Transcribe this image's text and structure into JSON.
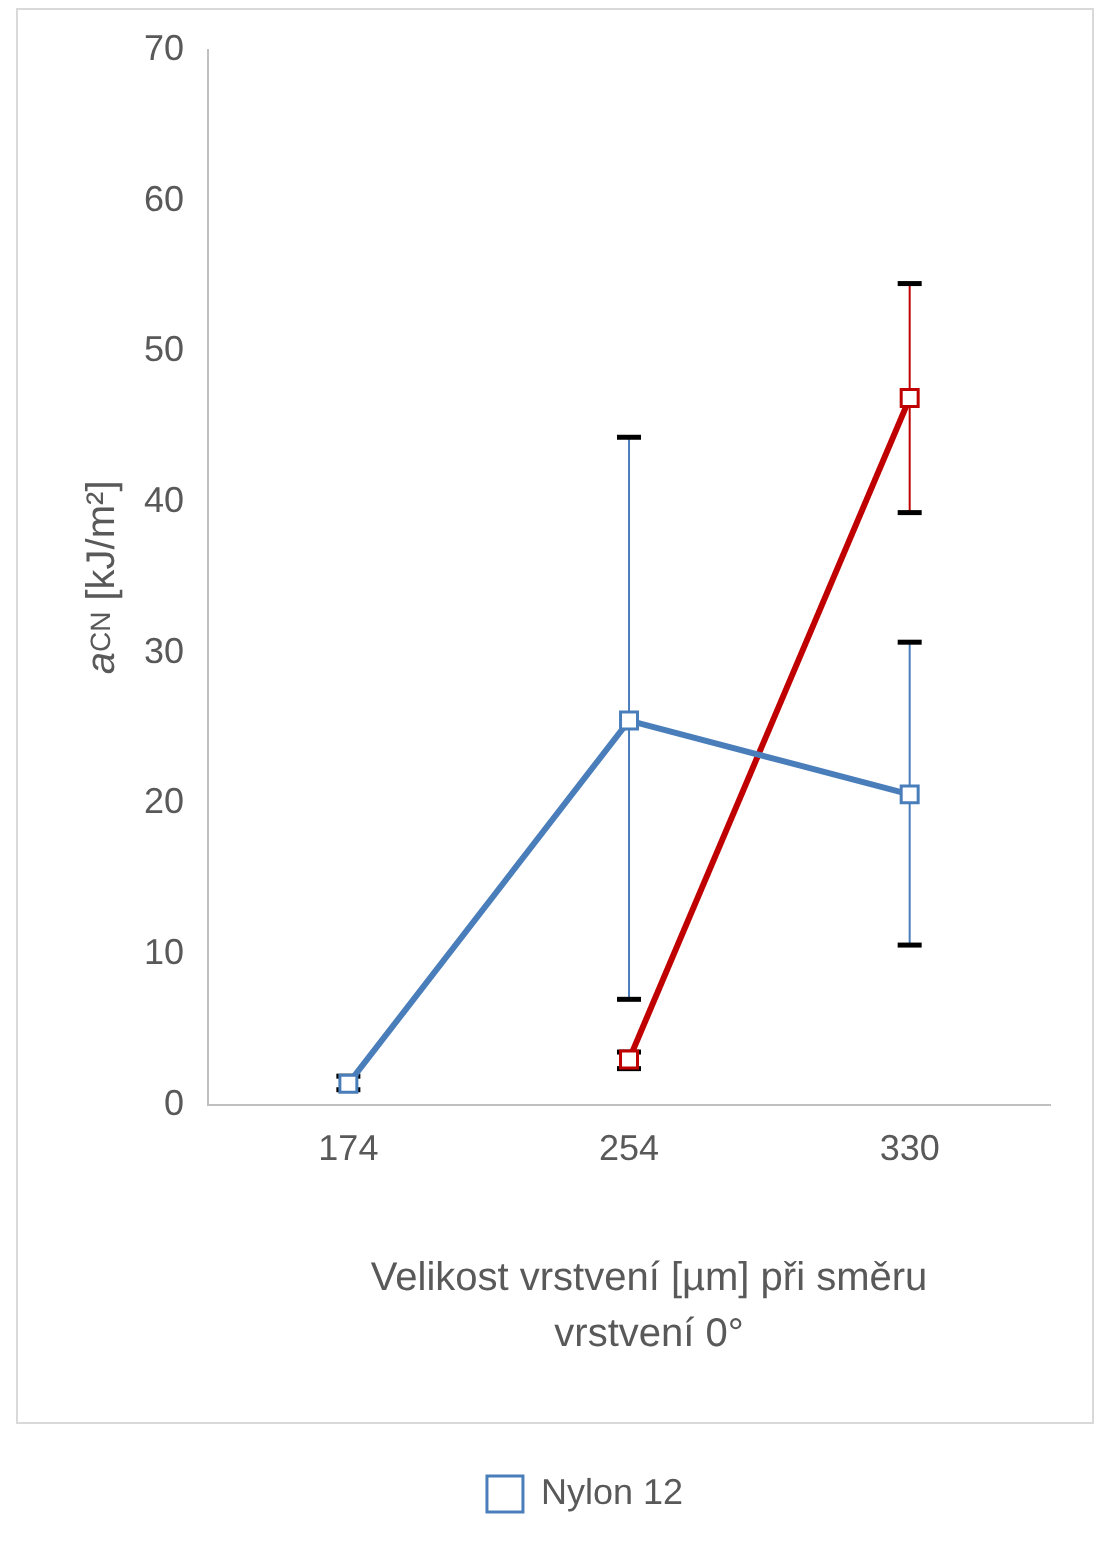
{
  "chart_data": {
    "type": "line",
    "xlabel": "Velikost vrstvení [µm] při směru vrstvení 0°",
    "ylabel": "a$_{CN}$ [kJ/m²]",
    "categories": [
      "174",
      "254",
      "330"
    ],
    "series": [
      {
        "name": "Nylon 12",
        "color": "#4a7ebb",
        "values": [
          1.4,
          25.5,
          20.6
        ],
        "errors": [
          [
            1.0,
            1.9
          ],
          [
            7.0,
            44.3
          ],
          [
            10.6,
            30.7
          ]
        ]
      },
      {
        "color": "#c00000",
        "values": [
          null,
          3.0,
          46.9
        ],
        "errors": [
          null,
          [
            2.4,
            3.5
          ],
          [
            39.3,
            54.5
          ]
        ]
      }
    ],
    "ylim": [
      0,
      70
    ],
    "yticks": [
      0,
      10,
      20,
      30,
      40,
      50,
      60,
      70
    ],
    "grid": false,
    "legend": "bottom",
    "marker": "square",
    "line_style": "solid"
  }
}
